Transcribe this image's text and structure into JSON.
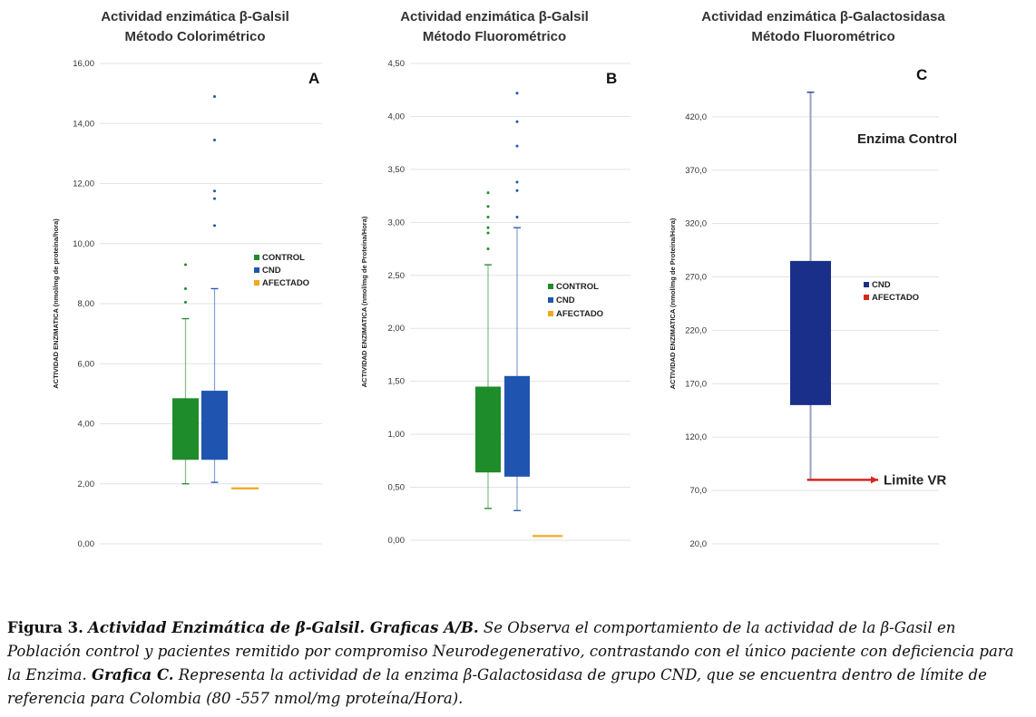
{
  "charts": [
    {
      "id": "A",
      "title_line1": "Actividad enzimática β-Galsil",
      "title_line2": "Método Colorimétrico",
      "panel_letter": "A",
      "ylabel": "ACTIVIDAD ENZIMATICA (nmol/mg de proteína/hora)",
      "legend": [
        "CONTROL",
        "CND",
        "AFECTADO"
      ]
    },
    {
      "id": "B",
      "title_line1": "Actividad enzimática β-Galsil",
      "title_line2": "Método Fluorométrico",
      "panel_letter": "B",
      "ylabel": "ACTIVIDAD ENZIMATICA (nmol/mg de Proteína/Hora)",
      "legend": [
        "CONTROL",
        "CND",
        "AFECTADO"
      ]
    },
    {
      "id": "C",
      "title_line1": "Actividad enzimática β-Galactosidasa",
      "title_line2": "Método Fluorométrico",
      "panel_letter": "C",
      "ylabel": "ACTIVIDAD ENZIMATICA (nmol/mg de Proteína/Hora)",
      "annotation": "Enzima Control",
      "limit_label": "Limite VR",
      "legend": [
        "CND",
        "AFECTADO"
      ]
    }
  ],
  "chart_data": [
    {
      "type": "box",
      "ylim": [
        0,
        16
      ],
      "yticks": [
        "0,00",
        "2,00",
        "4,00",
        "6,00",
        "8,00",
        "10,00",
        "12,00",
        "14,00",
        "16,00"
      ],
      "grid": true,
      "legend_position": "right",
      "series": [
        {
          "name": "CONTROL",
          "color": "#1e8c2a",
          "min": 2.0,
          "q1": 2.8,
          "q3": 4.85,
          "max": 7.5,
          "outliers": [
            8.05,
            8.5,
            9.3
          ]
        },
        {
          "name": "CND",
          "color": "#1f55b0",
          "min": 2.05,
          "q1": 2.8,
          "q3": 5.1,
          "max": 8.5,
          "outliers": [
            10.6,
            11.5,
            11.75,
            13.45,
            14.9
          ]
        },
        {
          "name": "AFECTADO",
          "color": "#f2a81d",
          "value": 1.85
        }
      ]
    },
    {
      "type": "box",
      "ylim": [
        0,
        4.5
      ],
      "yticks": [
        "0,00",
        "0,50",
        "1,00",
        "1,50",
        "2,00",
        "2,50",
        "3,00",
        "3,50",
        "4,00",
        "4,50"
      ],
      "grid": true,
      "legend_position": "right",
      "series": [
        {
          "name": "CONTROL",
          "color": "#1e8c2a",
          "min": 0.3,
          "q1": 0.64,
          "q3": 1.45,
          "max": 2.6,
          "outliers": [
            2.75,
            2.9,
            2.95,
            3.05,
            3.15,
            3.28
          ]
        },
        {
          "name": "CND",
          "color": "#1f55b0",
          "min": 0.28,
          "q1": 0.6,
          "q3": 1.55,
          "max": 2.95,
          "outliers": [
            3.05,
            3.3,
            3.38,
            3.72,
            3.95,
            4.22
          ]
        },
        {
          "name": "AFECTADO",
          "color": "#f2a81d",
          "value": 0.04
        }
      ]
    },
    {
      "type": "box",
      "ylim": [
        20,
        470
      ],
      "yticks": [
        "20,0",
        "70,0",
        "120,0",
        "170,0",
        "220,0",
        "270,0",
        "320,0",
        "370,0",
        "420,0"
      ],
      "grid": true,
      "legend_position": "right",
      "series": [
        {
          "name": "CND",
          "color": "#1a2f8a",
          "min": 80,
          "q1": 150,
          "q3": 285,
          "max": 443
        },
        {
          "name": "AFECTADO",
          "color": "#d9261c",
          "value": 80
        }
      ]
    }
  ],
  "caption": {
    "fig_label": "Figura 3.",
    "fig_title": "Actividad Enzimática de β-Galsil. Graficas A/B.",
    "text1": "Se Observa el comportamiento de la actividad de la β-Gasil en Población control y pacientes remitido por compromiso Neurodegenerativo, contrastando con el único paciente con deficiencia para la Enzima.",
    "graf_c": "Grafica C.",
    "text2": "Representa la actividad de la enzima β-Galactosidasa de grupo CND, que se encuentra dentro de límite de referencia para Colombia (80 -557 nmol/mg proteína/Hora)."
  }
}
